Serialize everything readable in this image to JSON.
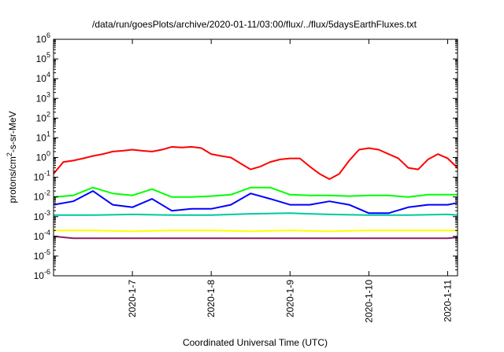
{
  "chart_data": {
    "type": "line",
    "title": "/data/run/goesPlots/archive/2020-01-11/03:00/flux/../flux/5daysEarthFluxes.txt",
    "xlabel": "Coordinated Universal Time (UTC)",
    "ylabel": "protons/cm2-s-sr-MeV",
    "ylabel_parts": [
      "protons/cm",
      "2",
      "-s-sr-MeV"
    ],
    "yscale": "log",
    "ylim": [
      1e-06,
      1000000.0
    ],
    "y_ticks": [
      {
        "base": "10",
        "exp": "-6",
        "value": 1e-06
      },
      {
        "base": "10",
        "exp": "-5",
        "value": 1e-05
      },
      {
        "base": "10",
        "exp": "-4",
        "value": 0.0001
      },
      {
        "base": "10",
        "exp": "-3",
        "value": 0.001
      },
      {
        "base": "10",
        "exp": "-2",
        "value": 0.01
      },
      {
        "base": "10",
        "exp": "-1",
        "value": 0.1
      },
      {
        "base": "10",
        "exp": "0",
        "value": 1
      },
      {
        "base": "10",
        "exp": "1",
        "value": 10
      },
      {
        "base": "10",
        "exp": "2",
        "value": 100
      },
      {
        "base": "10",
        "exp": "3",
        "value": 1000
      },
      {
        "base": "10",
        "exp": "4",
        "value": 10000
      },
      {
        "base": "10",
        "exp": "5",
        "value": 100000
      },
      {
        "base": "10",
        "exp": "6",
        "value": 1000000
      }
    ],
    "xlim": [
      "2020-01-06T00:00",
      "2020-01-11T03:00"
    ],
    "x_ticks": [
      "2020-1-7",
      "2020-1-8",
      "2020-1-9",
      "2020-1-10",
      "2020-1-11"
    ],
    "x_tick_dates": [
      "2020-01-07T00:00",
      "2020-01-08T00:00",
      "2020-01-09T00:00",
      "2020-01-10T00:00",
      "2020-01-11T00:00"
    ],
    "grid": false,
    "legend": "none",
    "series": [
      {
        "color": "#ff0000",
        "x": [
          "2020-01-06T00:00",
          "2020-01-06T03:00",
          "2020-01-06T06:00",
          "2020-01-06T09:00",
          "2020-01-06T12:00",
          "2020-01-06T15:00",
          "2020-01-06T18:00",
          "2020-01-06T21:00",
          "2020-01-07T00:00",
          "2020-01-07T03:00",
          "2020-01-07T06:00",
          "2020-01-07T09:00",
          "2020-01-07T12:00",
          "2020-01-07T15:00",
          "2020-01-07T18:00",
          "2020-01-07T21:00",
          "2020-01-08T00:00",
          "2020-01-08T03:00",
          "2020-01-08T06:00",
          "2020-01-08T09:00",
          "2020-01-08T12:00",
          "2020-01-08T15:00",
          "2020-01-08T18:00",
          "2020-01-08T21:00",
          "2020-01-09T00:00",
          "2020-01-09T03:00",
          "2020-01-09T06:00",
          "2020-01-09T09:00",
          "2020-01-09T12:00",
          "2020-01-09T15:00",
          "2020-01-09T18:00",
          "2020-01-09T21:00",
          "2020-01-10T00:00",
          "2020-01-10T03:00",
          "2020-01-10T06:00",
          "2020-01-10T09:00",
          "2020-01-10T12:00",
          "2020-01-10T15:00",
          "2020-01-10T18:00",
          "2020-01-10T21:00",
          "2020-01-11T00:00",
          "2020-01-11T03:00"
        ],
        "values": [
          0.15,
          0.6,
          0.7,
          0.9,
          1.2,
          1.5,
          2.0,
          2.2,
          2.5,
          2.2,
          2.0,
          2.5,
          3.5,
          3.2,
          3.5,
          3.0,
          1.5,
          1.2,
          1.0,
          0.5,
          0.25,
          0.35,
          0.6,
          0.8,
          0.9,
          0.9,
          0.35,
          0.15,
          0.08,
          0.15,
          0.7,
          2.5,
          3.0,
          2.5,
          1.5,
          0.9,
          0.3,
          0.25,
          0.8,
          1.5,
          0.9,
          0.3
        ]
      },
      {
        "color": "#00ff00",
        "x": [
          "2020-01-06T00:00",
          "2020-01-06T06:00",
          "2020-01-06T12:00",
          "2020-01-06T18:00",
          "2020-01-07T00:00",
          "2020-01-07T06:00",
          "2020-01-07T12:00",
          "2020-01-07T18:00",
          "2020-01-08T00:00",
          "2020-01-08T06:00",
          "2020-01-08T12:00",
          "2020-01-08T18:00",
          "2020-01-09T00:00",
          "2020-01-09T06:00",
          "2020-01-09T12:00",
          "2020-01-09T18:00",
          "2020-01-10T00:00",
          "2020-01-10T06:00",
          "2020-01-10T12:00",
          "2020-01-10T18:00",
          "2020-01-11T00:00",
          "2020-01-11T03:00"
        ],
        "values": [
          0.01,
          0.012,
          0.03,
          0.015,
          0.012,
          0.025,
          0.01,
          0.01,
          0.011,
          0.013,
          0.03,
          0.03,
          0.013,
          0.012,
          0.012,
          0.011,
          0.012,
          0.012,
          0.01,
          0.013,
          0.013,
          0.013
        ]
      },
      {
        "color": "#0000ff",
        "x": [
          "2020-01-06T00:00",
          "2020-01-06T06:00",
          "2020-01-06T12:00",
          "2020-01-06T18:00",
          "2020-01-07T00:00",
          "2020-01-07T06:00",
          "2020-01-07T12:00",
          "2020-01-07T18:00",
          "2020-01-08T00:00",
          "2020-01-08T06:00",
          "2020-01-08T12:00",
          "2020-01-08T18:00",
          "2020-01-09T00:00",
          "2020-01-09T06:00",
          "2020-01-09T12:00",
          "2020-01-09T18:00",
          "2020-01-10T00:00",
          "2020-01-10T06:00",
          "2020-01-10T12:00",
          "2020-01-10T18:00",
          "2020-01-11T00:00",
          "2020-01-11T03:00"
        ],
        "values": [
          0.004,
          0.006,
          0.02,
          0.004,
          0.003,
          0.008,
          0.002,
          0.0025,
          0.0025,
          0.004,
          0.015,
          0.008,
          0.004,
          0.004,
          0.006,
          0.004,
          0.0015,
          0.0015,
          0.003,
          0.004,
          0.004,
          0.005
        ]
      },
      {
        "color": "#00c8a0",
        "x": [
          "2020-01-06T00:00",
          "2020-01-06T12:00",
          "2020-01-07T00:00",
          "2020-01-07T12:00",
          "2020-01-08T00:00",
          "2020-01-08T12:00",
          "2020-01-09T00:00",
          "2020-01-09T12:00",
          "2020-01-10T00:00",
          "2020-01-10T12:00",
          "2020-01-11T00:00",
          "2020-01-11T03:00"
        ],
        "values": [
          0.0012,
          0.0012,
          0.0013,
          0.0012,
          0.0012,
          0.0014,
          0.0015,
          0.0013,
          0.0012,
          0.0012,
          0.0013,
          0.0012
        ]
      },
      {
        "color": "#ffff00",
        "x": [
          "2020-01-06T00:00",
          "2020-01-06T12:00",
          "2020-01-07T00:00",
          "2020-01-07T12:00",
          "2020-01-08T00:00",
          "2020-01-08T12:00",
          "2020-01-09T00:00",
          "2020-01-09T12:00",
          "2020-01-10T00:00",
          "2020-01-10T12:00",
          "2020-01-11T00:00",
          "2020-01-11T03:00"
        ],
        "values": [
          0.0002,
          0.0002,
          0.00018,
          0.0002,
          0.0002,
          0.00018,
          0.0002,
          0.00018,
          0.0002,
          0.0002,
          0.0002,
          0.0002
        ]
      },
      {
        "color": "#8b2060",
        "x": [
          "2020-01-06T00:00",
          "2020-01-06T06:00",
          "2020-01-06T12:00",
          "2020-01-06T18:00",
          "2020-01-07T00:00",
          "2020-01-07T06:00",
          "2020-01-07T12:00",
          "2020-01-07T18:00",
          "2020-01-08T00:00",
          "2020-01-08T06:00",
          "2020-01-08T12:00",
          "2020-01-08T18:00",
          "2020-01-09T00:00",
          "2020-01-09T06:00",
          "2020-01-09T12:00",
          "2020-01-09T18:00",
          "2020-01-10T00:00",
          "2020-01-10T06:00",
          "2020-01-10T12:00",
          "2020-01-10T18:00",
          "2020-01-11T00:00",
          "2020-01-11T03:00"
        ],
        "values": [
          0.0001,
          8e-05,
          8e-05,
          8e-05,
          8e-05,
          8e-05,
          8e-05,
          8e-05,
          8e-05,
          8e-05,
          8e-05,
          8e-05,
          8e-05,
          8e-05,
          8e-05,
          8e-05,
          8e-05,
          8e-05,
          8e-05,
          8e-05,
          8e-05,
          9e-05
        ]
      }
    ]
  }
}
